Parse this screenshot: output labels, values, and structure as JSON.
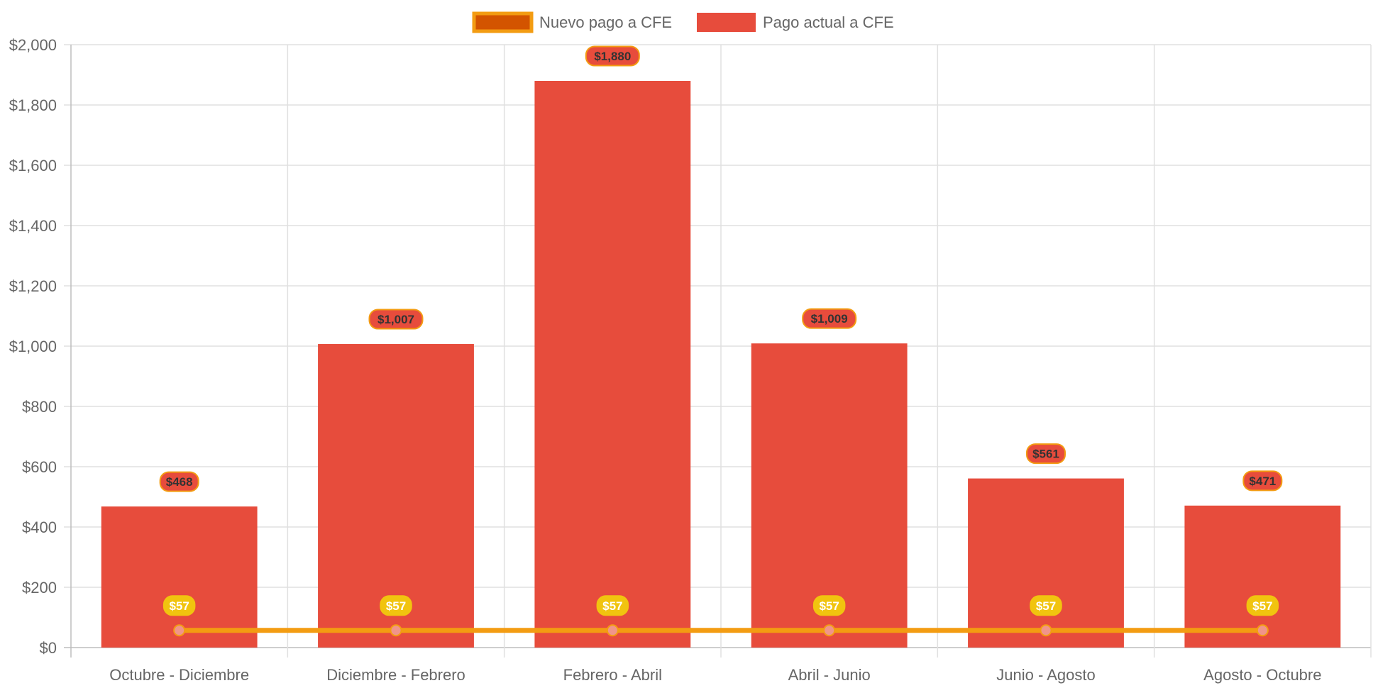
{
  "chart_data": {
    "type": "bar",
    "categories": [
      "Octubre - Diciembre",
      "Diciembre - Febrero",
      "Febrero - Abril",
      "Abril - Junio",
      "Junio - Agosto",
      "Agosto - Octubre"
    ],
    "series": [
      {
        "name": "Nuevo pago a CFE",
        "kind": "line",
        "values": [
          57,
          57,
          57,
          57,
          57,
          57
        ],
        "labels": [
          "$57",
          "$57",
          "$57",
          "$57",
          "$57",
          "$57"
        ],
        "color": "#F39C12",
        "legend_fill": "#D35400",
        "point_color": "#F1948A",
        "label_background": "#F1C40F",
        "label_text_color": "#FFFFFF"
      },
      {
        "name": "Pago actual a CFE",
        "kind": "bar",
        "values": [
          468,
          1007,
          1880,
          1009,
          561,
          471
        ],
        "labels": [
          "$468",
          "$1,007",
          "$1,880",
          "$1,009",
          "$561",
          "$471"
        ],
        "color": "#E74C3C",
        "label_border": "#F39C12",
        "label_text_color": "#333333"
      }
    ],
    "y_ticks": [
      {
        "value": 0,
        "label": "$0"
      },
      {
        "value": 200,
        "label": "$200"
      },
      {
        "value": 400,
        "label": "$400"
      },
      {
        "value": 600,
        "label": "$600"
      },
      {
        "value": 800,
        "label": "$800"
      },
      {
        "value": 1000,
        "label": "$1,000"
      },
      {
        "value": 1200,
        "label": "$1,200"
      },
      {
        "value": 1400,
        "label": "$1,400"
      },
      {
        "value": 1600,
        "label": "$1,600"
      },
      {
        "value": 1800,
        "label": "$1,800"
      },
      {
        "value": 2000,
        "label": "$2,000"
      }
    ],
    "ylim": [
      0,
      2000
    ],
    "title": "",
    "xlabel": "",
    "ylabel": "",
    "grid": true,
    "legend_position": "top-center",
    "grid_color": "#E0E0E0",
    "axis_color": "#BDBDBD",
    "tick_color": "#666666"
  }
}
